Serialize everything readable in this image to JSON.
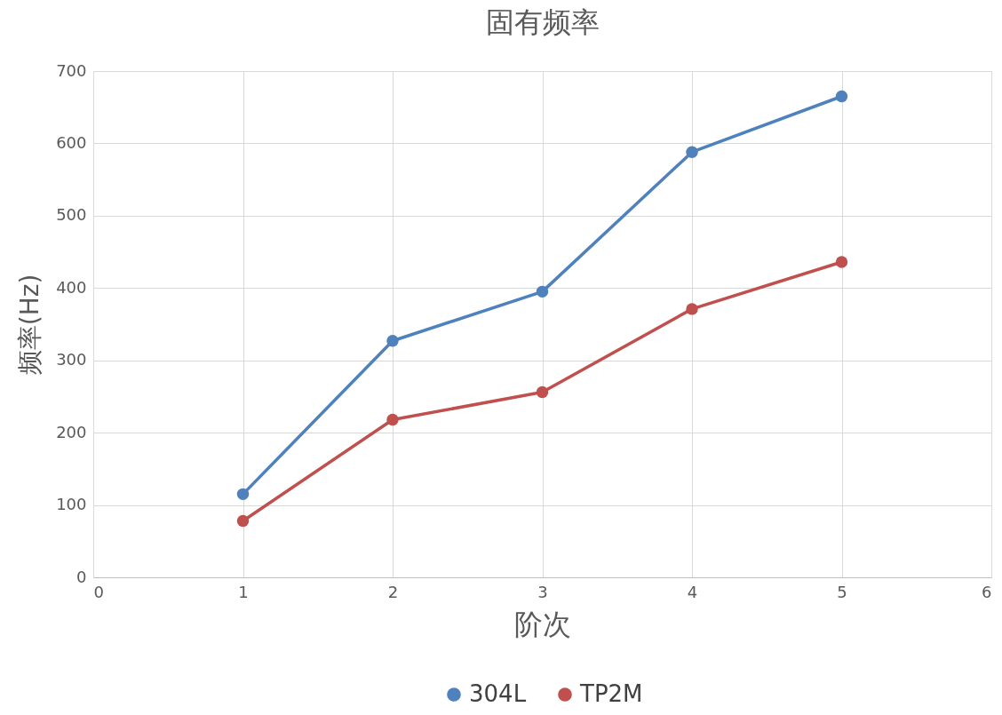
{
  "chart_data": {
    "type": "line",
    "title": "固有频率",
    "xlabel": "阶次",
    "ylabel": "频率(Hz)",
    "x": [
      1,
      2,
      3,
      4,
      5
    ],
    "series": [
      {
        "name": "304L",
        "color": "#4f81bd",
        "values": [
          115,
          327,
          395,
          588,
          665
        ]
      },
      {
        "name": "TP2M",
        "color": "#c0504d",
        "values": [
          78,
          218,
          256,
          371,
          436
        ]
      }
    ],
    "xlim": [
      0,
      6
    ],
    "xticks": [
      0,
      1,
      2,
      3,
      4,
      5,
      6
    ],
    "ylim": [
      0,
      700
    ],
    "yticks": [
      0,
      100,
      200,
      300,
      400,
      500,
      600,
      700
    ],
    "grid": true,
    "legend": "bottom",
    "marker": "circle",
    "line_style": "solid"
  }
}
